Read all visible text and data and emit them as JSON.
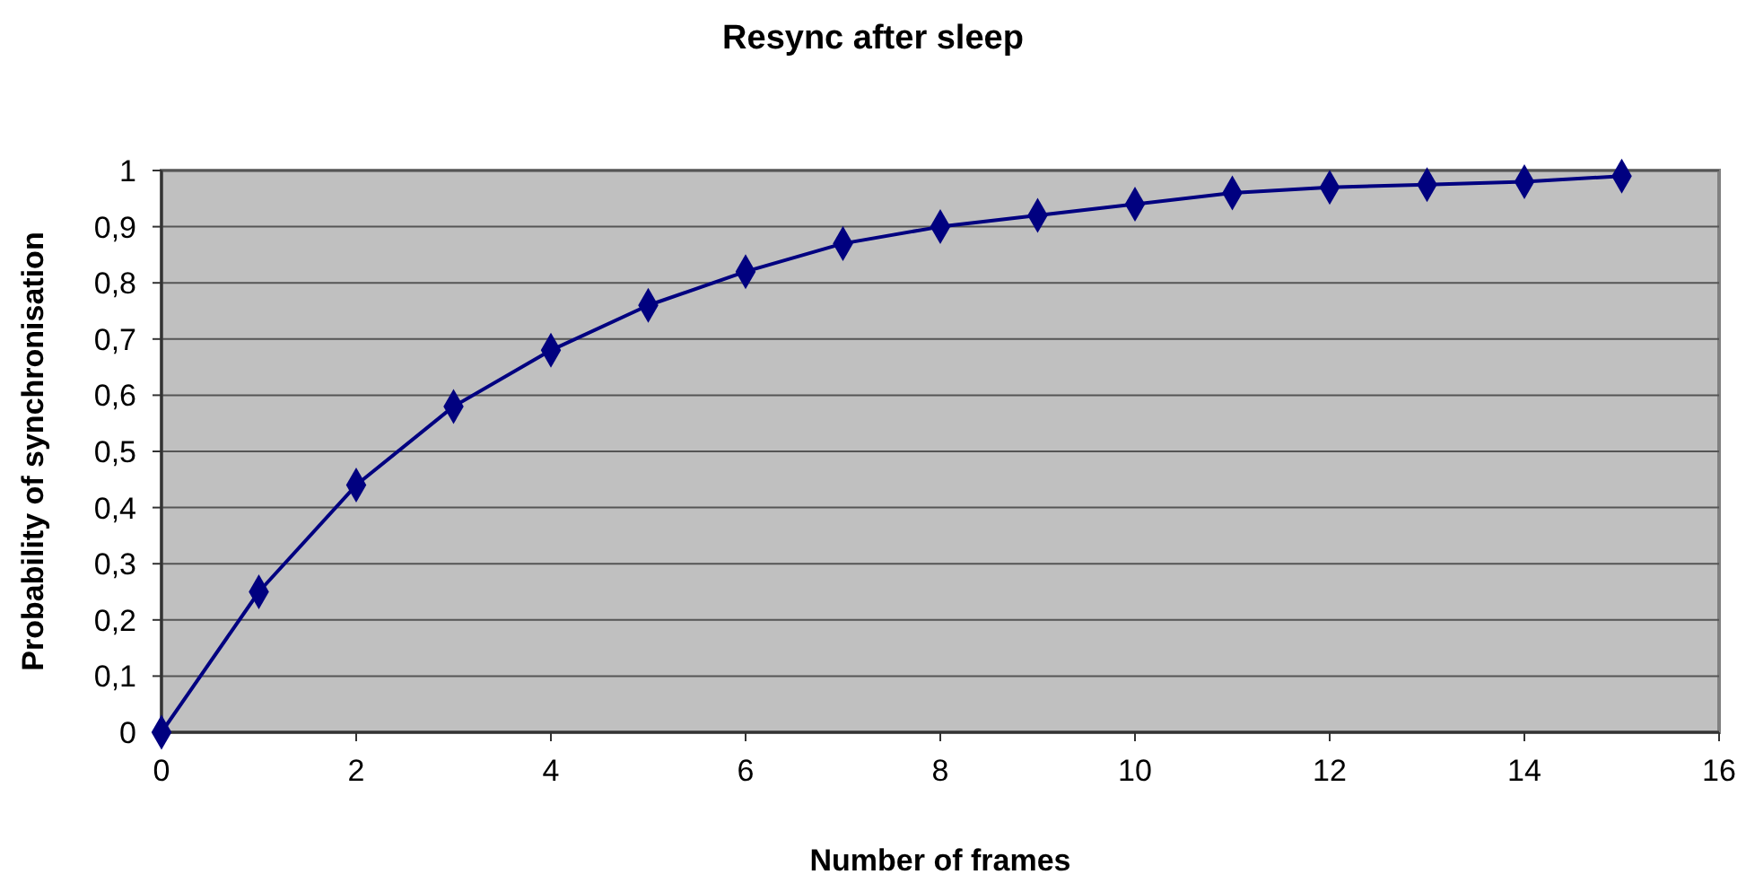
{
  "chart_data": {
    "type": "line",
    "title": "Resync after sleep",
    "xlabel": "Number of frames",
    "ylabel": "Probability of synchronisation",
    "x": [
      0,
      1,
      2,
      3,
      4,
      5,
      6,
      7,
      8,
      9,
      10,
      11,
      12,
      13,
      14,
      15
    ],
    "series": [
      {
        "color": "#000080",
        "values": [
          0,
          0.25,
          0.44,
          0.58,
          0.68,
          0.76,
          0.82,
          0.87,
          0.9,
          0.92,
          0.94,
          0.96,
          0.97,
          0.975,
          0.98,
          0.99
        ]
      }
    ],
    "xlim": [
      0,
      16
    ],
    "xticks": [
      0,
      2,
      4,
      6,
      8,
      10,
      12,
      14,
      16
    ],
    "ylim": [
      0,
      1
    ],
    "yticks": [
      0,
      {
        "value": 0.1,
        "label": "0,1"
      },
      {
        "value": 0.2,
        "label": "0,2"
      },
      {
        "value": 0.3,
        "label": "0,3"
      },
      {
        "value": 0.4,
        "label": "0,4"
      },
      {
        "value": 0.5,
        "label": "0,5"
      },
      {
        "value": 0.6,
        "label": "0,6"
      },
      {
        "value": 0.7,
        "label": "0,7"
      },
      {
        "value": 0.8,
        "label": "0,8"
      },
      {
        "value": 0.9,
        "label": "0,9"
      },
      1
    ],
    "grid": "y",
    "marker": "diamond",
    "line_style": "solid"
  }
}
